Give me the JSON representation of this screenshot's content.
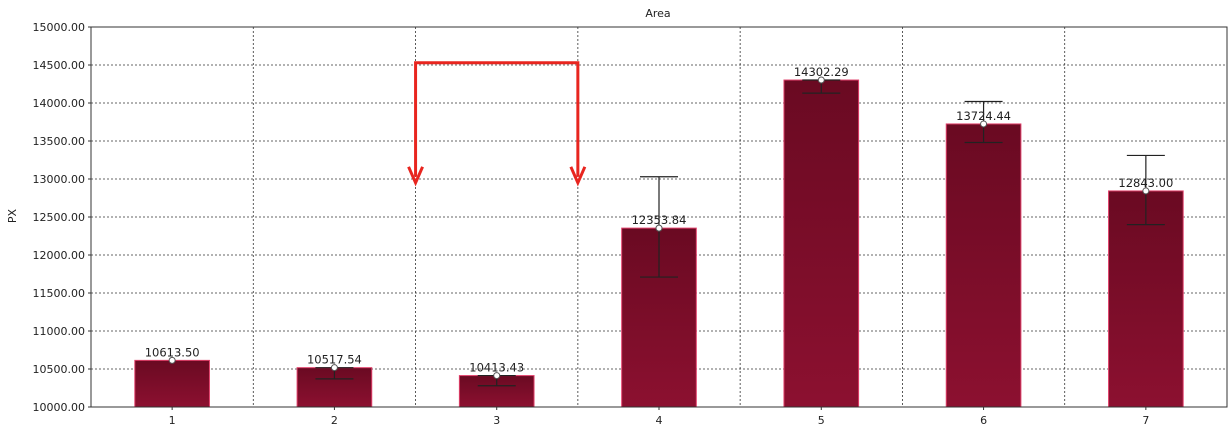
{
  "chart_data": {
    "type": "bar",
    "title": "Area",
    "xlabel": "",
    "ylabel": "PX",
    "categories": [
      "1",
      "2",
      "3",
      "4",
      "5",
      "6",
      "7"
    ],
    "values": [
      10613.5,
      10517.54,
      10413.43,
      12353.84,
      14302.29,
      13724.44,
      12843.0
    ],
    "value_labels": [
      "10613.50",
      "10517.54",
      "10413.43",
      "12353.84",
      "14302.29",
      "13724.44",
      "12843.00"
    ],
    "error_low": [
      10613.5,
      10370,
      10280,
      11710,
      14130,
      13480,
      12400
    ],
    "error_high": [
      10613.5,
      10517.54,
      10413.43,
      13030,
      14302.29,
      14020,
      13310
    ],
    "ylim": [
      10000,
      15000
    ],
    "yticks": [
      10000,
      10500,
      11000,
      11500,
      12000,
      12500,
      13000,
      13500,
      14000,
      14500,
      15000
    ],
    "ytick_labels": [
      "10000.00",
      "10500.00",
      "11000.00",
      "11500.00",
      "12000.00",
      "12500.00",
      "13000.00",
      "13500.00",
      "14000.00",
      "14500.00",
      "15000.00"
    ],
    "grid": true,
    "legend": "none",
    "bar_color": "#7a0b26",
    "bar_edge_color": "#e0406a",
    "annotation": {
      "type": "bracket-arrows",
      "color": "#e8251f",
      "top_y": 14530,
      "arrow_tip_y": 12950,
      "between_categories": [
        "2",
        "4"
      ]
    }
  }
}
